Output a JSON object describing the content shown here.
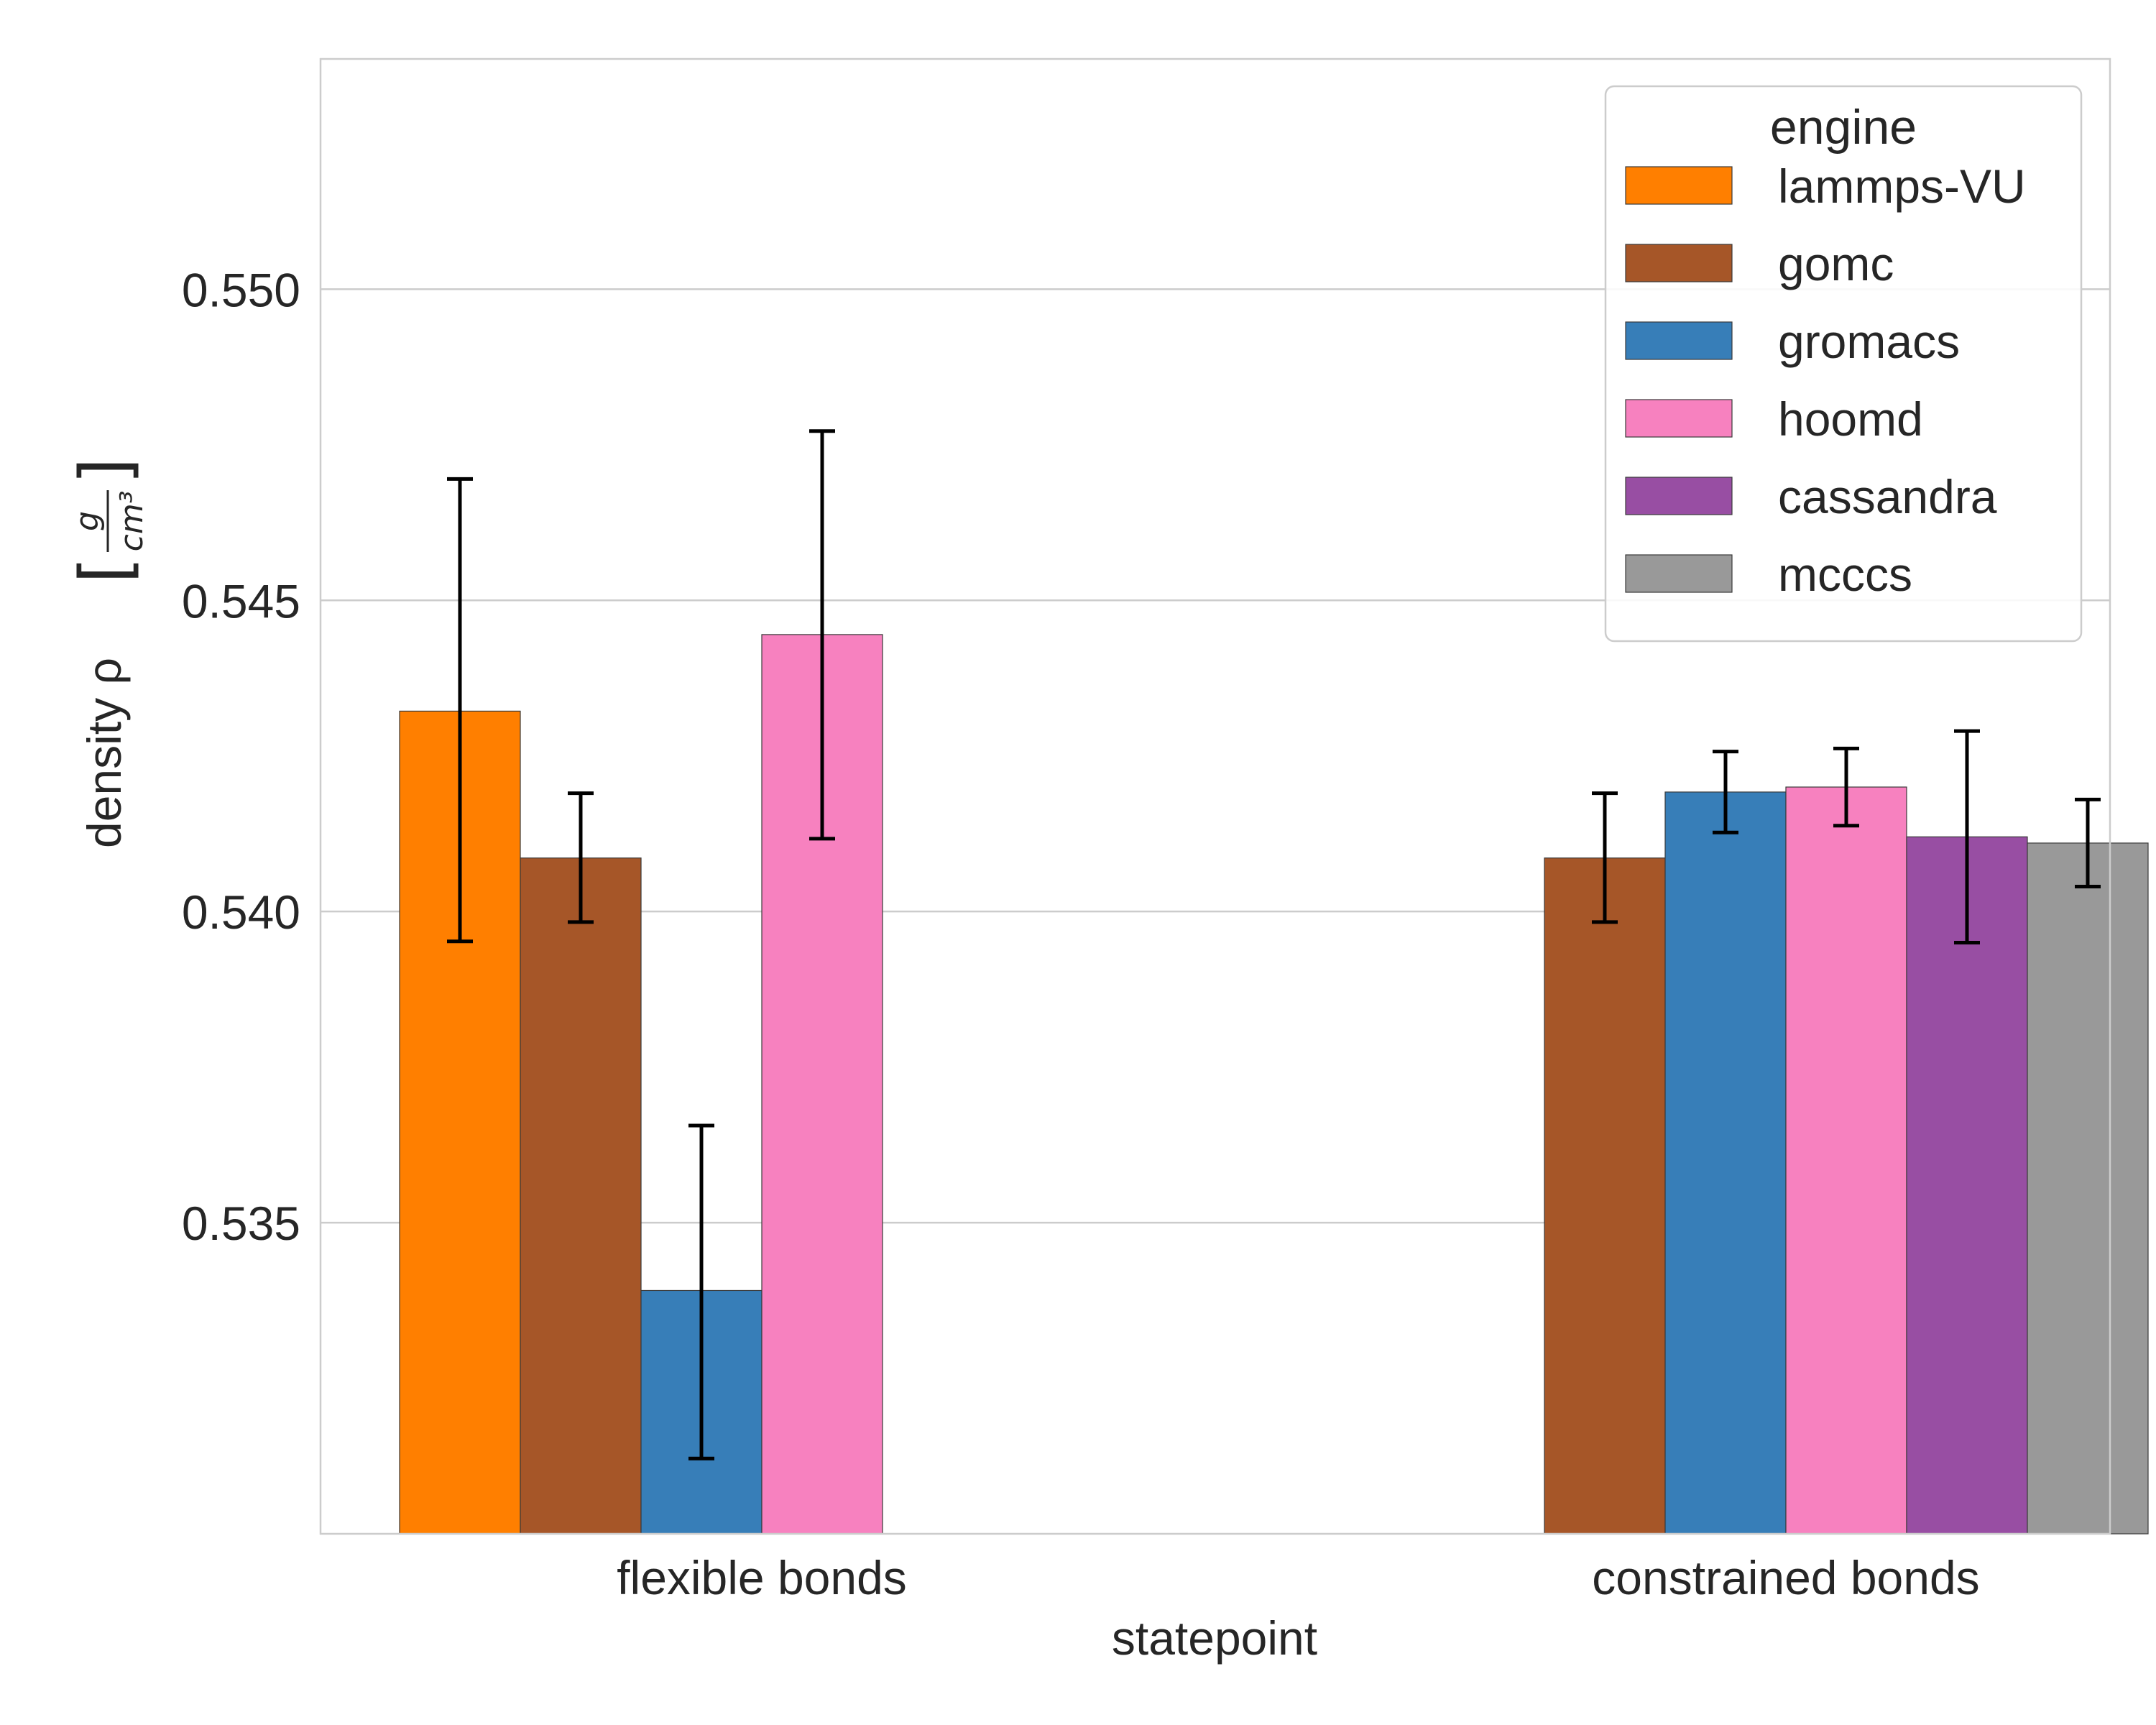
{
  "chart_data": {
    "type": "bar",
    "xlabel": "statepoint",
    "ylabel_prefix": "density ρ",
    "ylabel_unit_numerator": "g",
    "ylabel_unit_denominator": "cm³",
    "ylim": [
      0.53,
      0.5537
    ],
    "yticks": [
      0.535,
      0.54,
      0.545,
      0.55
    ],
    "ytick_labels": [
      "0.535",
      "0.540",
      "0.545",
      "0.550"
    ],
    "grid": "horizontal",
    "legend": {
      "title": "engine",
      "placement": "top-right"
    },
    "categories": [
      "flexible bonds",
      "constrained bonds"
    ],
    "series": [
      {
        "name": "lammps-VU",
        "color": "#ff7f00",
        "values": [
          0.54322,
          null
        ],
        "err_low": [
          0.53952,
          null
        ],
        "err_high": [
          0.54695,
          null
        ]
      },
      {
        "name": "gomc",
        "color": "#a65628",
        "values": [
          0.54086,
          0.54086
        ],
        "err_low": [
          0.53983,
          0.53983
        ],
        "err_high": [
          0.5419,
          0.5419
        ]
      },
      {
        "name": "gromacs",
        "color": "#377eb8",
        "values": [
          0.53391,
          0.54192
        ],
        "err_low": [
          0.53121,
          0.54127
        ],
        "err_high": [
          0.53656,
          0.54257
        ]
      },
      {
        "name": "hoomd",
        "color": "#f781bf",
        "values": [
          0.54445,
          0.542
        ],
        "err_low": [
          0.54117,
          0.54138
        ],
        "err_high": [
          0.54772,
          0.54262
        ]
      },
      {
        "name": "cassandra",
        "color": "#984ea3",
        "values": [
          null,
          0.5412
        ],
        "err_low": [
          null,
          0.5395
        ],
        "err_high": [
          null,
          0.5429
        ]
      },
      {
        "name": "mcccs",
        "color": "#999999",
        "values": [
          null,
          0.5411
        ],
        "err_low": [
          null,
          0.5404
        ],
        "err_high": [
          null,
          0.5418
        ]
      }
    ]
  }
}
